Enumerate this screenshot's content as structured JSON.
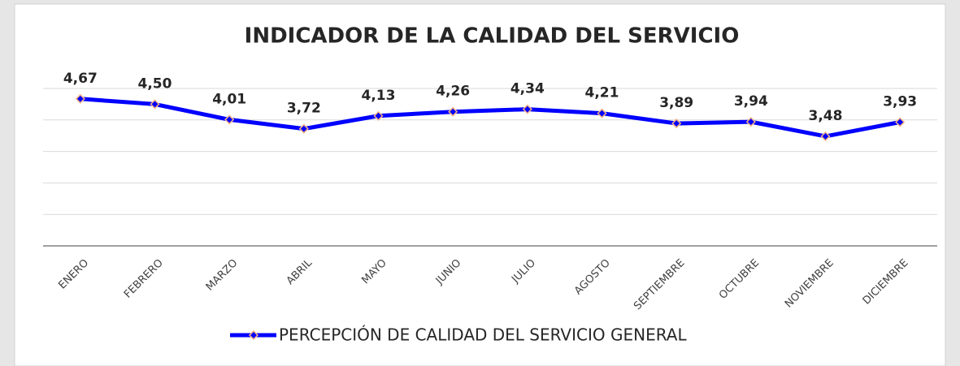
{
  "chart_data": {
    "type": "line",
    "title": "INDICADOR DE LA CALIDAD DEL SERVICIO",
    "categories": [
      "ENERO",
      "FEBRERO",
      "MARZO",
      "ABRIL",
      "MAYO",
      "JUNIO",
      "JULIO",
      "AGOSTO",
      "SEPTIEMBRE",
      "OCTUBRE",
      "NOVIEMBRE",
      "DICIEMBRE"
    ],
    "series": [
      {
        "name": "PERCEPCIÓN DE CALIDAD DEL SERVICIO GENERAL",
        "color": "#0000ff",
        "marker_color": "#f4b183",
        "values": [
          4.67,
          4.5,
          4.01,
          3.72,
          4.13,
          4.26,
          4.34,
          4.21,
          3.89,
          3.94,
          3.48,
          3.93
        ],
        "value_labels": [
          "4,67",
          "4,50",
          "4,01",
          "3,72",
          "4,13",
          "4,26",
          "4,34",
          "4,21",
          "3,89",
          "3,94",
          "3,48",
          "3,93"
        ]
      }
    ],
    "ylim": [
      0,
      5
    ],
    "yticks": [
      0,
      1,
      2,
      3,
      4,
      5
    ],
    "grid": true,
    "legend": "bottom"
  }
}
